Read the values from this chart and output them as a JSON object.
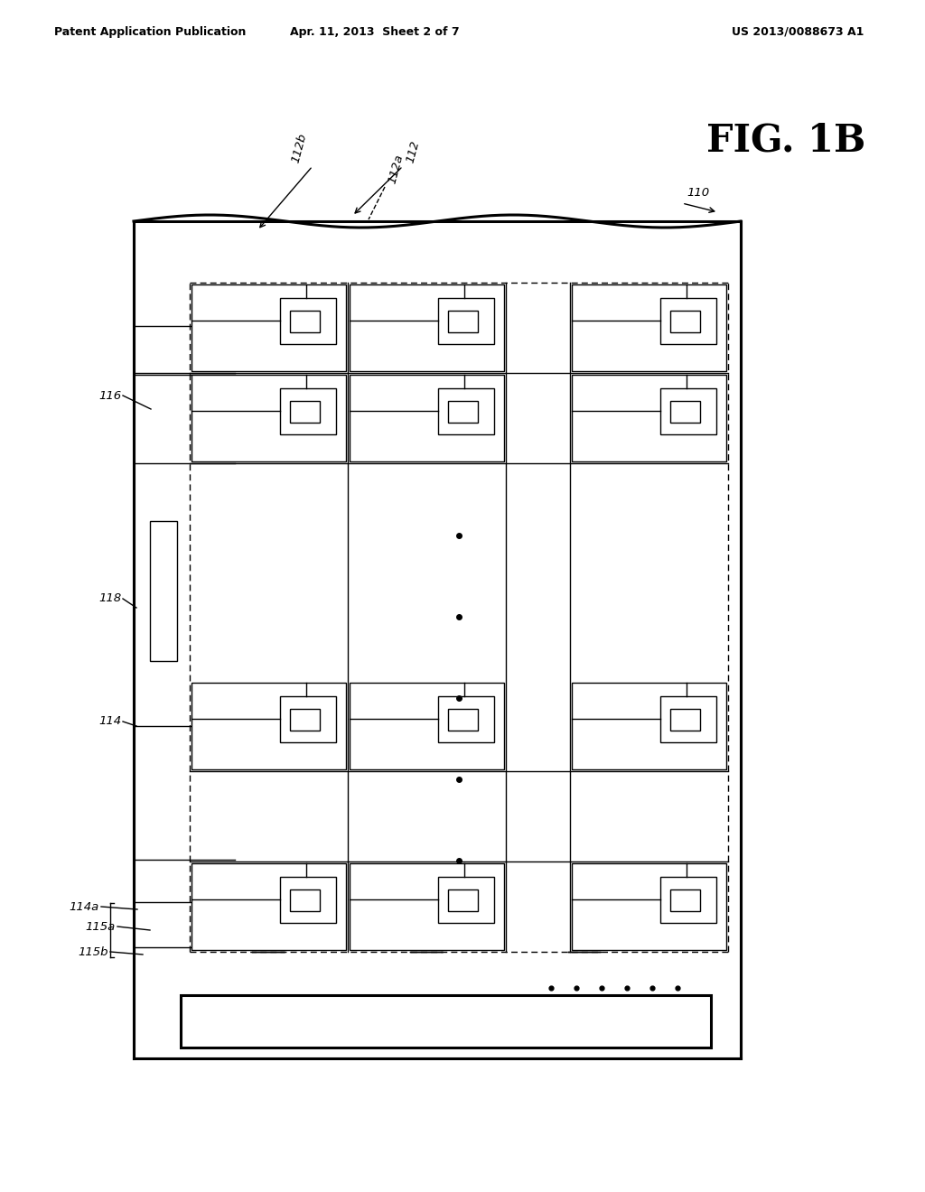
{
  "bg_color": "#ffffff",
  "line_color": "#000000",
  "header_left": "Patent Application Publication",
  "header_center": "Apr. 11, 2013  Sheet 2 of 7",
  "header_right": "US 2013/0088673 A1",
  "fig_label": "FIG. 1B",
  "label_110": "110",
  "label_112": "112",
  "label_112a": "112a",
  "label_112b": "112b",
  "label_114": "114",
  "label_114a": "114a",
  "label_115a": "115a",
  "label_115b": "115b",
  "label_116": "116",
  "label_118": "118"
}
